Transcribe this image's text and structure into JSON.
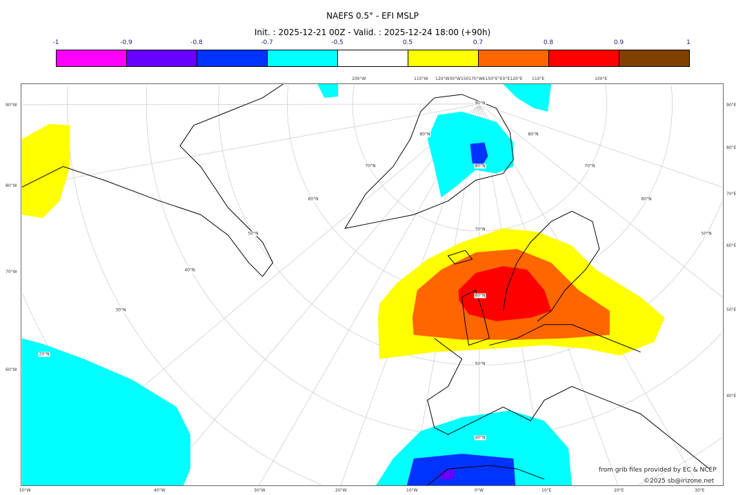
{
  "title": "NAEFS 0.5° - EFI MSLP",
  "subtitle": "Init. : 2025-12-21 00Z - Valid. : 2025-12-24 18:00 (+90h)",
  "colorbar": {
    "ticks": [
      "-1",
      "-0.9",
      "-0.8",
      "-0.7",
      "-0.5",
      "0.5",
      "0.7",
      "0.8",
      "0.9",
      "1"
    ],
    "colors": [
      "#ff00ff",
      "#6600ff",
      "#0033ff",
      "#00ffff",
      "#ffffff",
      "#ffff00",
      "#ff6600",
      "#ff0000",
      "#804000"
    ]
  },
  "axes": {
    "left": [
      "90°W",
      "80°W",
      "70°W",
      "60°W"
    ],
    "right": [
      "90°E",
      "80°E",
      "70°E",
      "60°E",
      "50°E",
      "40°E"
    ],
    "bottom": [
      "50°W",
      "40°W",
      "30°W",
      "20°W",
      "10°W",
      "0°W",
      "10°E",
      "20°E",
      "30°E"
    ],
    "top": [
      "100°W",
      "110°W",
      "120°W30°W150170°W€150°E°E0°E120°E",
      "110°E",
      "100°E"
    ]
  },
  "lat_labels": [
    "90°N",
    "80°N",
    "70°N",
    "60°N",
    "50°N",
    "40°N",
    "20°N",
    "30°N",
    "40°N",
    "50°N",
    "60°N",
    "70°N",
    "80°N",
    "80°N",
    "70°N",
    "60°N",
    "50°N"
  ],
  "credits": {
    "source": "from grib files provided by EC & NCEP",
    "copyright": "©2025 sb@irizone.net"
  }
}
